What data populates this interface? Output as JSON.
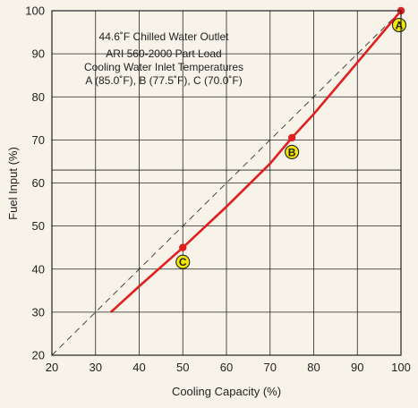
{
  "chart_data": {
    "type": "line",
    "xlabel": "Cooling Capacity (%)",
    "ylabel": "Fuel Input (%)",
    "xlim": [
      20,
      100
    ],
    "ylim": [
      20,
      100
    ],
    "x_ticks": [
      "20",
      "30",
      "40",
      "50",
      "60",
      "70",
      "80",
      "90",
      "100"
    ],
    "y_ticks": [
      "20",
      "30",
      "40",
      "50",
      "60",
      "70",
      "80",
      "90",
      "100"
    ],
    "extra_gridline_y": 63,
    "grid": true,
    "annotations": [
      "44.6˚F Chilled Water Outlet",
      "ARI 560-2000 Part Load",
      "Cooling Water Inlet Temperatures",
      "A (85.0˚F), B (77.5˚F), C (70.0˚F)"
    ],
    "series": [
      {
        "style": "solid",
        "color": "#e02020",
        "x": [
          33.5,
          40,
          50,
          60,
          70,
          75,
          80,
          90,
          100
        ],
        "y": [
          30,
          36,
          45,
          54.5,
          64.5,
          70.5,
          76,
          88,
          100
        ]
      },
      {
        "style": "dashed",
        "color": "#333333",
        "x": [
          20,
          100
        ],
        "y": [
          20,
          100
        ]
      }
    ],
    "points": [
      {
        "label": "A",
        "x": 100,
        "y": 100
      },
      {
        "label": "B",
        "x": 75,
        "y": 70.5
      },
      {
        "label": "C",
        "x": 50,
        "y": 45
      }
    ],
    "marker_color": "#e02020",
    "badge_color": "#f3e600"
  }
}
